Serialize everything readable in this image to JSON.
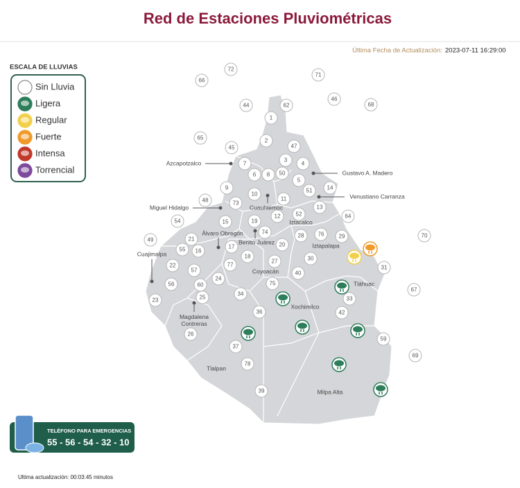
{
  "header": {
    "title": "Red de Estaciones Pluviométricas",
    "update_label": "Última Fecha de Actualización:",
    "update_value": "2023-07-11 16:29:00"
  },
  "legend": {
    "title": "ESCALA DE LLUVIAS",
    "items": [
      "Sin Lluvia",
      "Ligera",
      "Regular",
      "Fuerte",
      "Intensa",
      "Torrencial"
    ]
  },
  "stations": [
    "72",
    "71",
    "66",
    "46",
    "68",
    "44",
    "62",
    "1",
    "65",
    "2",
    "45",
    "47",
    "3",
    "4",
    "7",
    "6",
    "8",
    "50",
    "5",
    "51",
    "14",
    "9",
    "10",
    "11",
    "73",
    "13",
    "48",
    "52",
    "12",
    "64",
    "54",
    "15",
    "19",
    "74",
    "76",
    "28",
    "29",
    "70",
    "21",
    "49",
    "17",
    "20",
    "55",
    "16",
    "18",
    "30",
    "27",
    "77",
    "22",
    "57",
    "31",
    "40",
    "24",
    "60",
    "56",
    "75",
    "67",
    "34",
    "33",
    "25",
    "23",
    "36",
    "42",
    "26",
    "59",
    "37",
    "69",
    "78",
    "39"
  ],
  "boroughs": [
    "Azcapotzalco",
    "Gustavo A. Madero",
    "Venustiano Carranza",
    "Miguel Hidalgo",
    "Cuauhtémoc",
    "Álvaro Obregón",
    "Benito Juárez",
    "Iztacalco",
    "Iztapalapa",
    "Cuajimalpa",
    "Coyoacán",
    "Tláhuac",
    "Xochimilco",
    "Magdalena Contreras",
    "Tlalpan",
    "Milpa Alta"
  ],
  "emergency": {
    "label": "TELÉFONO PARA EMERGENCIAS",
    "phone": "55 - 56 - 54 - 32 - 10"
  },
  "footer": "Ultima actualización: 00:03:45 minutos"
}
